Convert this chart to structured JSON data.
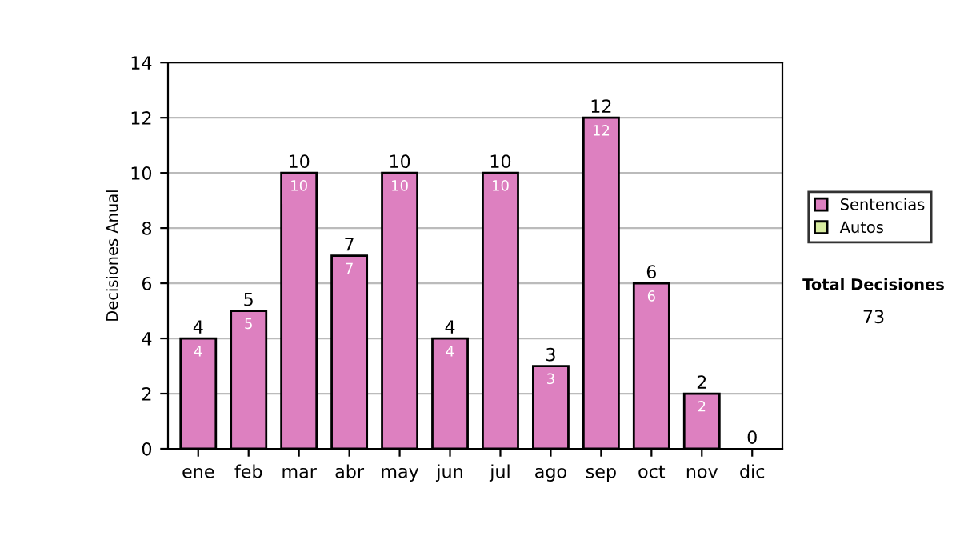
{
  "chart_data": {
    "type": "bar",
    "stacked": true,
    "ylabel": "Decisiones Anual",
    "categories": [
      "ene",
      "feb",
      "mar",
      "abr",
      "may",
      "jun",
      "jul",
      "ago",
      "sep",
      "oct",
      "nov",
      "dic"
    ],
    "series": [
      {
        "name": "Sentencias",
        "color": "#dd80c0",
        "values": [
          4,
          5,
          10,
          7,
          10,
          4,
          10,
          3,
          12,
          6,
          2,
          0
        ],
        "value_labels": [
          "4",
          "5",
          "10",
          "7",
          "10",
          "4",
          "10",
          "3",
          "12",
          "6",
          "2",
          null
        ]
      },
      {
        "name": "Autos",
        "color": "#d8eca0",
        "values": [
          0,
          0,
          0,
          0,
          0,
          0,
          0,
          0,
          0,
          0,
          0,
          0
        ]
      }
    ],
    "totals": [
      "4",
      "5",
      "10",
      "7",
      "10",
      "4",
      "10",
      "3",
      "12",
      "6",
      "2",
      "0"
    ],
    "ylim": [
      0,
      14
    ],
    "yticks": [
      0,
      2,
      4,
      6,
      8,
      10,
      12,
      14
    ],
    "grid": "y",
    "legend": "right",
    "annotations": [
      "Total Decisiones",
      "73"
    ]
  }
}
